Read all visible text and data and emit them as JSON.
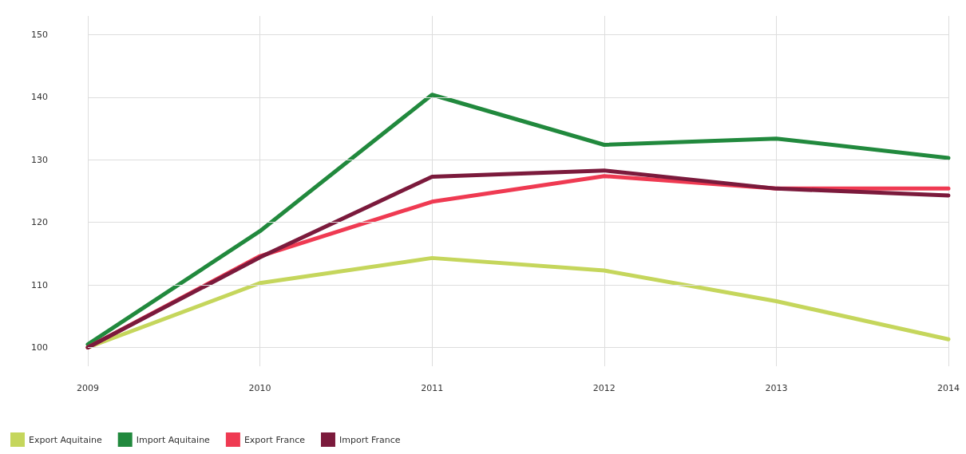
{
  "chart_data": {
    "type": "line",
    "categories": [
      "2009",
      "2010",
      "2011",
      "2012",
      "2013",
      "2014"
    ],
    "series": [
      {
        "name": "Export Aquitaine",
        "color": "#c5d65c",
        "values": [
          100,
          110.3,
          114.3,
          112.3,
          107.4,
          101.3
        ]
      },
      {
        "name": "Import Aquitaine",
        "color": "#21893d",
        "values": [
          100.5,
          118.6,
          140.4,
          132.4,
          133.4,
          130.3
        ]
      },
      {
        "name": "Export France",
        "color": "#ef3a52",
        "values": [
          100,
          114.6,
          123.3,
          127.4,
          125.4,
          125.4
        ]
      },
      {
        "name": "Import France",
        "color": "#7b1a3c",
        "values": [
          100,
          114.4,
          127.3,
          128.3,
          125.4,
          124.3
        ]
      }
    ],
    "ylim": [
      97,
      153
    ],
    "yticks": [
      100,
      110,
      120,
      130,
      140,
      150
    ],
    "grid": true,
    "legend": "bottom left",
    "marker": "none",
    "line_style": "solid"
  }
}
